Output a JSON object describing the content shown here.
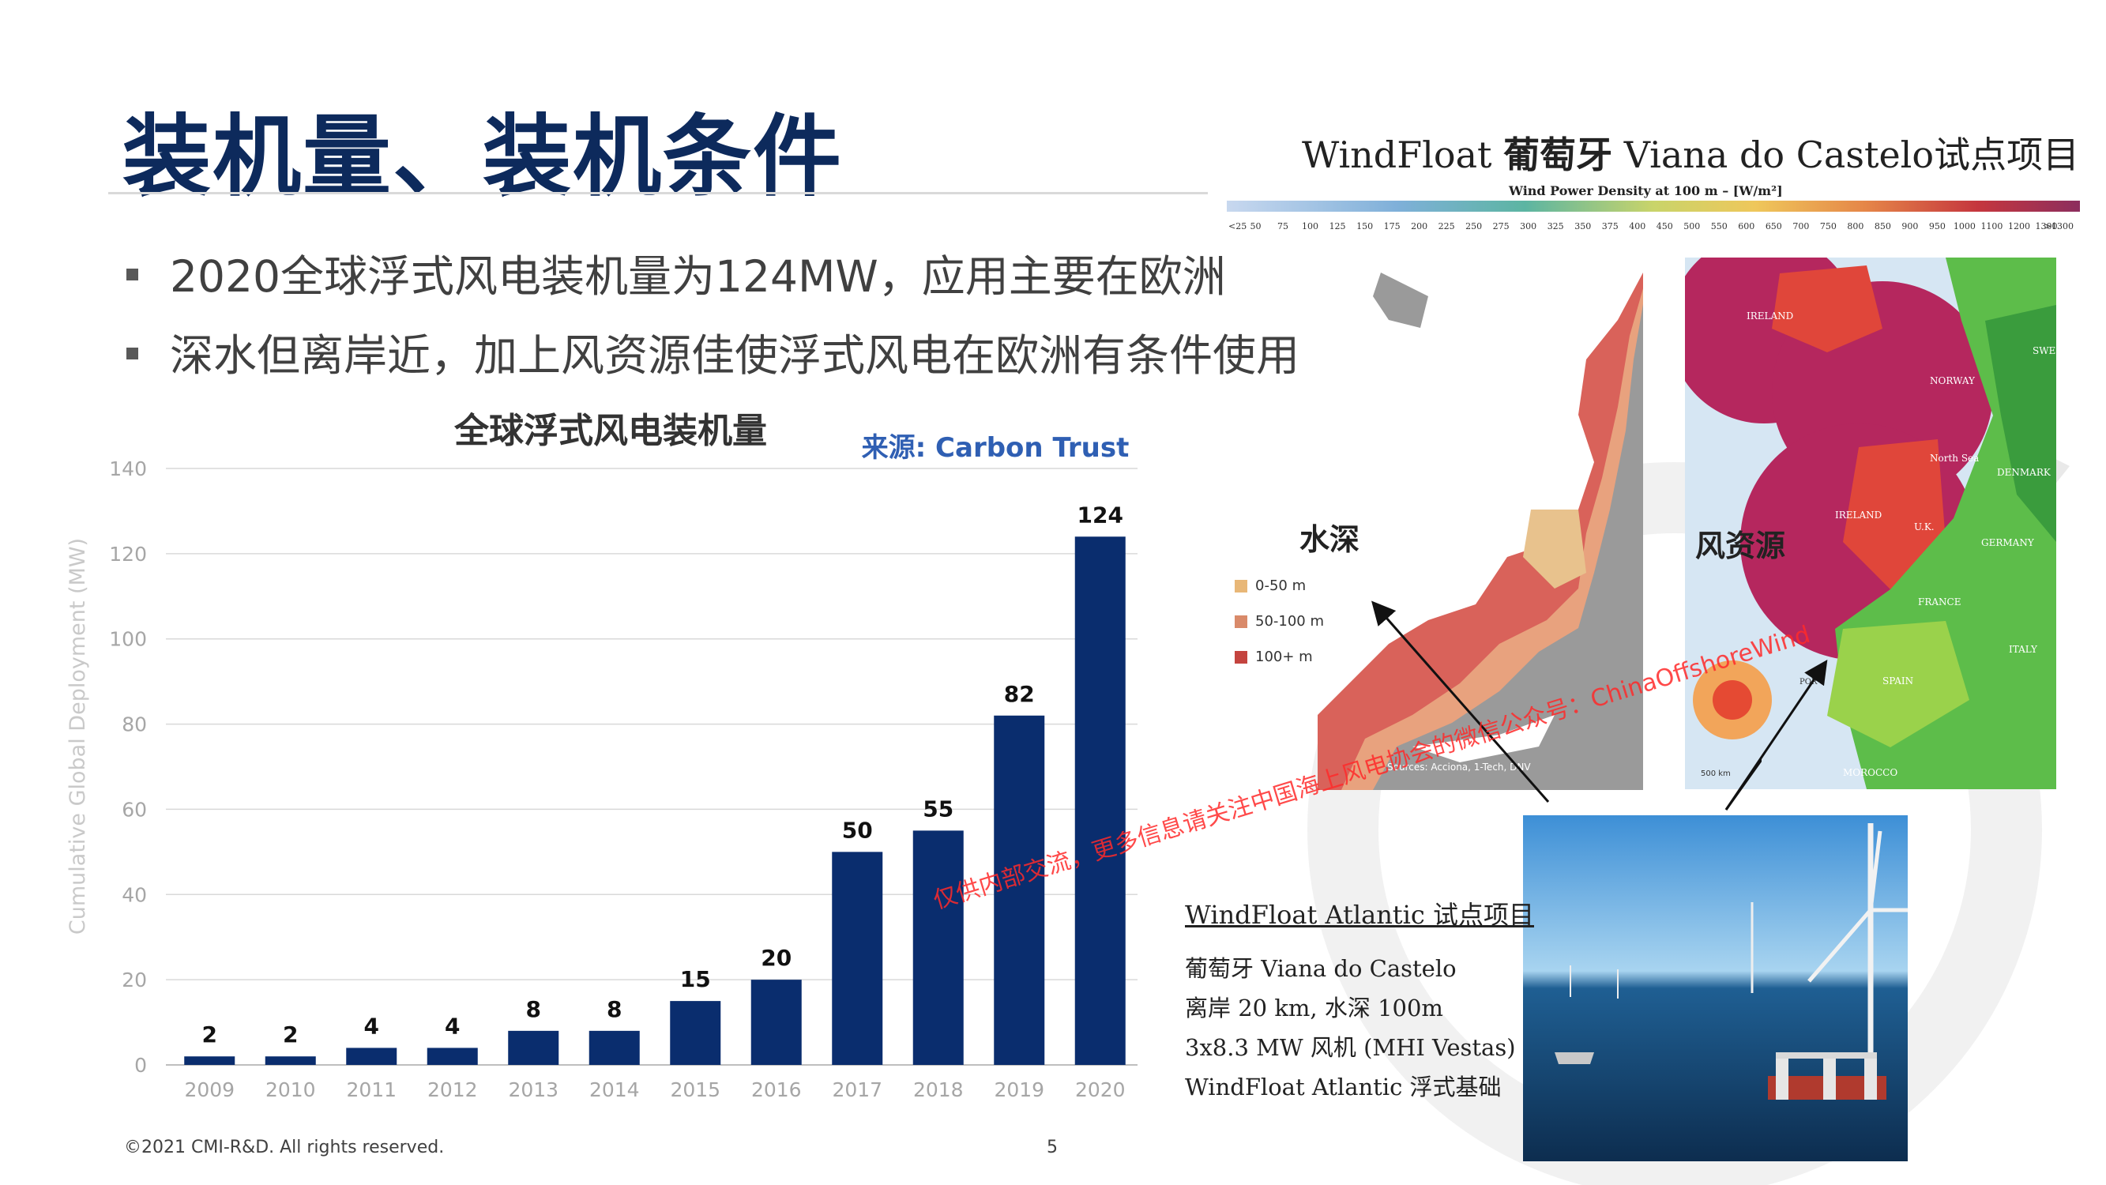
{
  "slide": {
    "title": "装机量、装机条件",
    "bullets": [
      "2020全球浮式风电装机量为124MW，应用主要在欧洲",
      "深水但离岸近，加上风资源佳使浮式风电在欧洲有条件使用"
    ],
    "footer": "©2021 CMI-R&D. All rights reserved.",
    "page_number": "5"
  },
  "chart_data": {
    "type": "bar",
    "title": "全球浮式风电装机量",
    "source_label": "来源: Carbon Trust",
    "ylabel": "Cumulative Global Deployment (MW)",
    "xlabel": "",
    "categories": [
      "2009",
      "2010",
      "2011",
      "2012",
      "2013",
      "2014",
      "2015",
      "2016",
      "2017",
      "2018",
      "2019",
      "2020"
    ],
    "values": [
      2,
      2,
      4,
      4,
      8,
      8,
      15,
      20,
      50,
      55,
      82,
      124
    ],
    "ylim": [
      0,
      140
    ],
    "yticks": [
      0,
      20,
      40,
      60,
      80,
      100,
      120,
      140
    ],
    "grid": true,
    "bar_color": "#0a2d6e"
  },
  "maps": {
    "windfloat_title_prefix": "WindFloat",
    "windfloat_title_bold": "葡萄牙",
    "windfloat_title_suffix": "Viana do Castelo试点项目",
    "wind_legend_title": "Wind Power Density at 100 m – [W/m²]",
    "wind_legend_ticks": [
      "<25",
      "50",
      "75",
      "100",
      "125",
      "150",
      "175",
      "200",
      "225",
      "250",
      "275",
      "300",
      "325",
      "350",
      "375",
      "400",
      "450",
      "500",
      "550",
      "600",
      "650",
      "700",
      "750",
      "800",
      "850",
      "900",
      "950",
      "1000",
      "1100",
      "1200",
      "1300",
      ">1300"
    ],
    "depth_label": "水深",
    "depth_legend": [
      {
        "label": "0-50 m",
        "color": "#e8b777"
      },
      {
        "label": "50-100 m",
        "color": "#d98a6a"
      },
      {
        "label": "100+ m",
        "color": "#c4443f"
      }
    ],
    "depth_source": "Sources: Acciona, 1-Tech, DNV",
    "wind_label": "风资源",
    "country_labels": [
      "IRELAND",
      "SWE",
      "NORWAY",
      "DENMARK",
      "North Sea",
      "IRELAND",
      "U.K.",
      "GERMANY",
      "FRANCE",
      "ITALY",
      "SPAIN",
      "POR",
      "MOROCCO"
    ],
    "scale_text": "500 km"
  },
  "project": {
    "title": "WindFloat Atlantic 试点项目",
    "lines": [
      "葡萄牙 Viana do Castelo",
      "离岸 20 km, 水深 100m",
      "3x8.3 MW 风机 (MHI Vestas)",
      "WindFloat Atlantic 浮式基础"
    ]
  },
  "watermark": "仅供内部交流，更多信息请关注中国海上风电协会的微信公众号：ChinaOffshoreWind",
  "colors": {
    "title": "#0d2a5c",
    "source": "#2f5fb3",
    "watermark": "#ff2a2a"
  }
}
